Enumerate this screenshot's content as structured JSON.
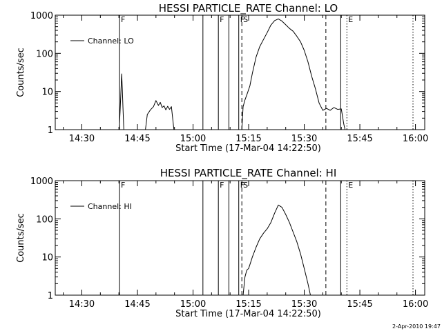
{
  "footer": {
    "date_stamp": "2-Apr-2010 19:47"
  },
  "chart_data": [
    {
      "type": "line",
      "title": "HESSI PARTICLE_RATE Channel: LO",
      "xlabel": "Start Time (17-Mar-04 14:22:50)",
      "ylabel": "Counts/sec",
      "y_scale": "log",
      "ylim": [
        1,
        1000
      ],
      "xlim": [
        "14:22:50",
        "16:02:30"
      ],
      "x_ticks": [
        "14:30",
        "14:45",
        "15:00",
        "15:15",
        "15:30",
        "15:45",
        "16:00"
      ],
      "y_ticks": [
        "1",
        "10",
        "100",
        "1000"
      ],
      "legend": {
        "label": "Channel: LO",
        "placement": "top-left"
      },
      "series": [
        {
          "name": "Channel: LO",
          "points": [
            [
              "14:40:05",
              1
            ],
            [
              "14:40:20",
              3
            ],
            [
              "14:40:35",
              12
            ],
            [
              "14:40:45",
              29
            ],
            [
              "14:40:55",
              12
            ],
            [
              "14:41:05",
              4
            ],
            [
              "14:41:20",
              1
            ],
            [
              "14:47:10",
              1
            ],
            [
              "14:47:40",
              2.5
            ],
            [
              "14:48:30",
              3.3
            ],
            [
              "14:49:20",
              4
            ],
            [
              "14:50:00",
              5.8
            ],
            [
              "14:50:40",
              4.3
            ],
            [
              "14:51:10",
              5.2
            ],
            [
              "14:51:40",
              3.8
            ],
            [
              "14:52:10",
              4.2
            ],
            [
              "14:52:40",
              3.3
            ],
            [
              "14:53:10",
              4.1
            ],
            [
              "14:53:40",
              3.4
            ],
            [
              "14:54:10",
              4.0
            ],
            [
              "14:54:50",
              1
            ],
            [
              "15:13:10",
              1
            ],
            [
              "15:13:30",
              4
            ],
            [
              "15:14:00",
              6
            ],
            [
              "15:14:40",
              9
            ],
            [
              "15:15:20",
              14
            ],
            [
              "15:16:00",
              30
            ],
            [
              "15:17:00",
              80
            ],
            [
              "15:18:00",
              150
            ],
            [
              "15:19:00",
              230
            ],
            [
              "15:20:00",
              350
            ],
            [
              "15:21:00",
              550
            ],
            [
              "15:22:00",
              720
            ],
            [
              "15:23:00",
              800
            ],
            [
              "15:24:00",
              700
            ],
            [
              "15:25:00",
              560
            ],
            [
              "15:26:00",
              450
            ],
            [
              "15:27:00",
              380
            ],
            [
              "15:28:00",
              280
            ],
            [
              "15:29:00",
              200
            ],
            [
              "15:30:00",
              120
            ],
            [
              "15:31:00",
              60
            ],
            [
              "15:32:00",
              25
            ],
            [
              "15:33:00",
              12
            ],
            [
              "15:34:00",
              5
            ],
            [
              "15:35:00",
              3.2
            ],
            [
              "15:36:00",
              3.6
            ],
            [
              "15:37:00",
              3.2
            ],
            [
              "15:38:00",
              3.8
            ],
            [
              "15:39:00",
              3.4
            ],
            [
              "15:40:00",
              3.5
            ],
            [
              "15:40:40",
              1.4
            ],
            [
              "15:41:00",
              1
            ]
          ]
        }
      ],
      "markers": [
        {
          "time": "14:40:10",
          "style": "solid",
          "label": "F"
        },
        {
          "time": "15:02:40",
          "style": "solid",
          "label": ""
        },
        {
          "time": "15:06:50",
          "style": "solid",
          "label": "F"
        },
        {
          "time": "15:09:40",
          "style": "solid",
          "label": ""
        },
        {
          "time": "15:12:20",
          "style": "solid",
          "label": "F"
        },
        {
          "time": "15:13:10",
          "style": "dashed",
          "label": "S"
        },
        {
          "time": "15:35:50",
          "style": "dashed",
          "label": ""
        },
        {
          "time": "15:39:50",
          "style": "solid",
          "label": ""
        },
        {
          "time": "15:41:30",
          "style": "dotted",
          "label": "E"
        },
        {
          "time": "15:59:20",
          "style": "dotted",
          "label": ""
        }
      ],
      "grid": false
    },
    {
      "type": "line",
      "title": "HESSI PARTICLE_RATE Channel: HI",
      "xlabel": "Start Time (17-Mar-04 14:22:50)",
      "ylabel": "Counts/sec",
      "y_scale": "log",
      "ylim": [
        1,
        1000
      ],
      "xlim": [
        "14:22:50",
        "16:02:30"
      ],
      "x_ticks": [
        "14:30",
        "14:45",
        "15:00",
        "15:15",
        "15:30",
        "15:45",
        "16:00"
      ],
      "y_ticks": [
        "1",
        "10",
        "100",
        "1000"
      ],
      "legend": {
        "label": "Channel: HI",
        "placement": "top-left"
      },
      "series": [
        {
          "name": "Channel: HI",
          "points": [
            [
              "15:13:30",
              1
            ],
            [
              "15:14:00",
              3
            ],
            [
              "15:14:30",
              4.5
            ],
            [
              "15:15:00",
              5
            ],
            [
              "15:15:30",
              7
            ],
            [
              "15:16:00",
              10
            ],
            [
              "15:17:00",
              18
            ],
            [
              "15:18:00",
              30
            ],
            [
              "15:19:00",
              42
            ],
            [
              "15:20:00",
              55
            ],
            [
              "15:21:00",
              80
            ],
            [
              "15:22:00",
              140
            ],
            [
              "15:23:00",
              230
            ],
            [
              "15:24:00",
              200
            ],
            [
              "15:25:00",
              130
            ],
            [
              "15:26:00",
              80
            ],
            [
              "15:27:00",
              45
            ],
            [
              "15:28:00",
              25
            ],
            [
              "15:29:00",
              12
            ],
            [
              "15:30:00",
              5
            ],
            [
              "15:31:00",
              2
            ],
            [
              "15:31:40",
              1
            ]
          ]
        }
      ],
      "markers": [
        {
          "time": "14:40:10",
          "style": "solid",
          "label": "F"
        },
        {
          "time": "15:02:40",
          "style": "solid",
          "label": ""
        },
        {
          "time": "15:06:50",
          "style": "solid",
          "label": "F"
        },
        {
          "time": "15:09:40",
          "style": "solid",
          "label": ""
        },
        {
          "time": "15:12:20",
          "style": "solid",
          "label": "F"
        },
        {
          "time": "15:13:10",
          "style": "dashed",
          "label": "S"
        },
        {
          "time": "15:35:50",
          "style": "dashed",
          "label": ""
        },
        {
          "time": "15:39:50",
          "style": "solid",
          "label": ""
        },
        {
          "time": "15:41:30",
          "style": "dotted",
          "label": "E"
        },
        {
          "time": "15:59:20",
          "style": "dotted",
          "label": ""
        }
      ],
      "grid": false
    }
  ]
}
